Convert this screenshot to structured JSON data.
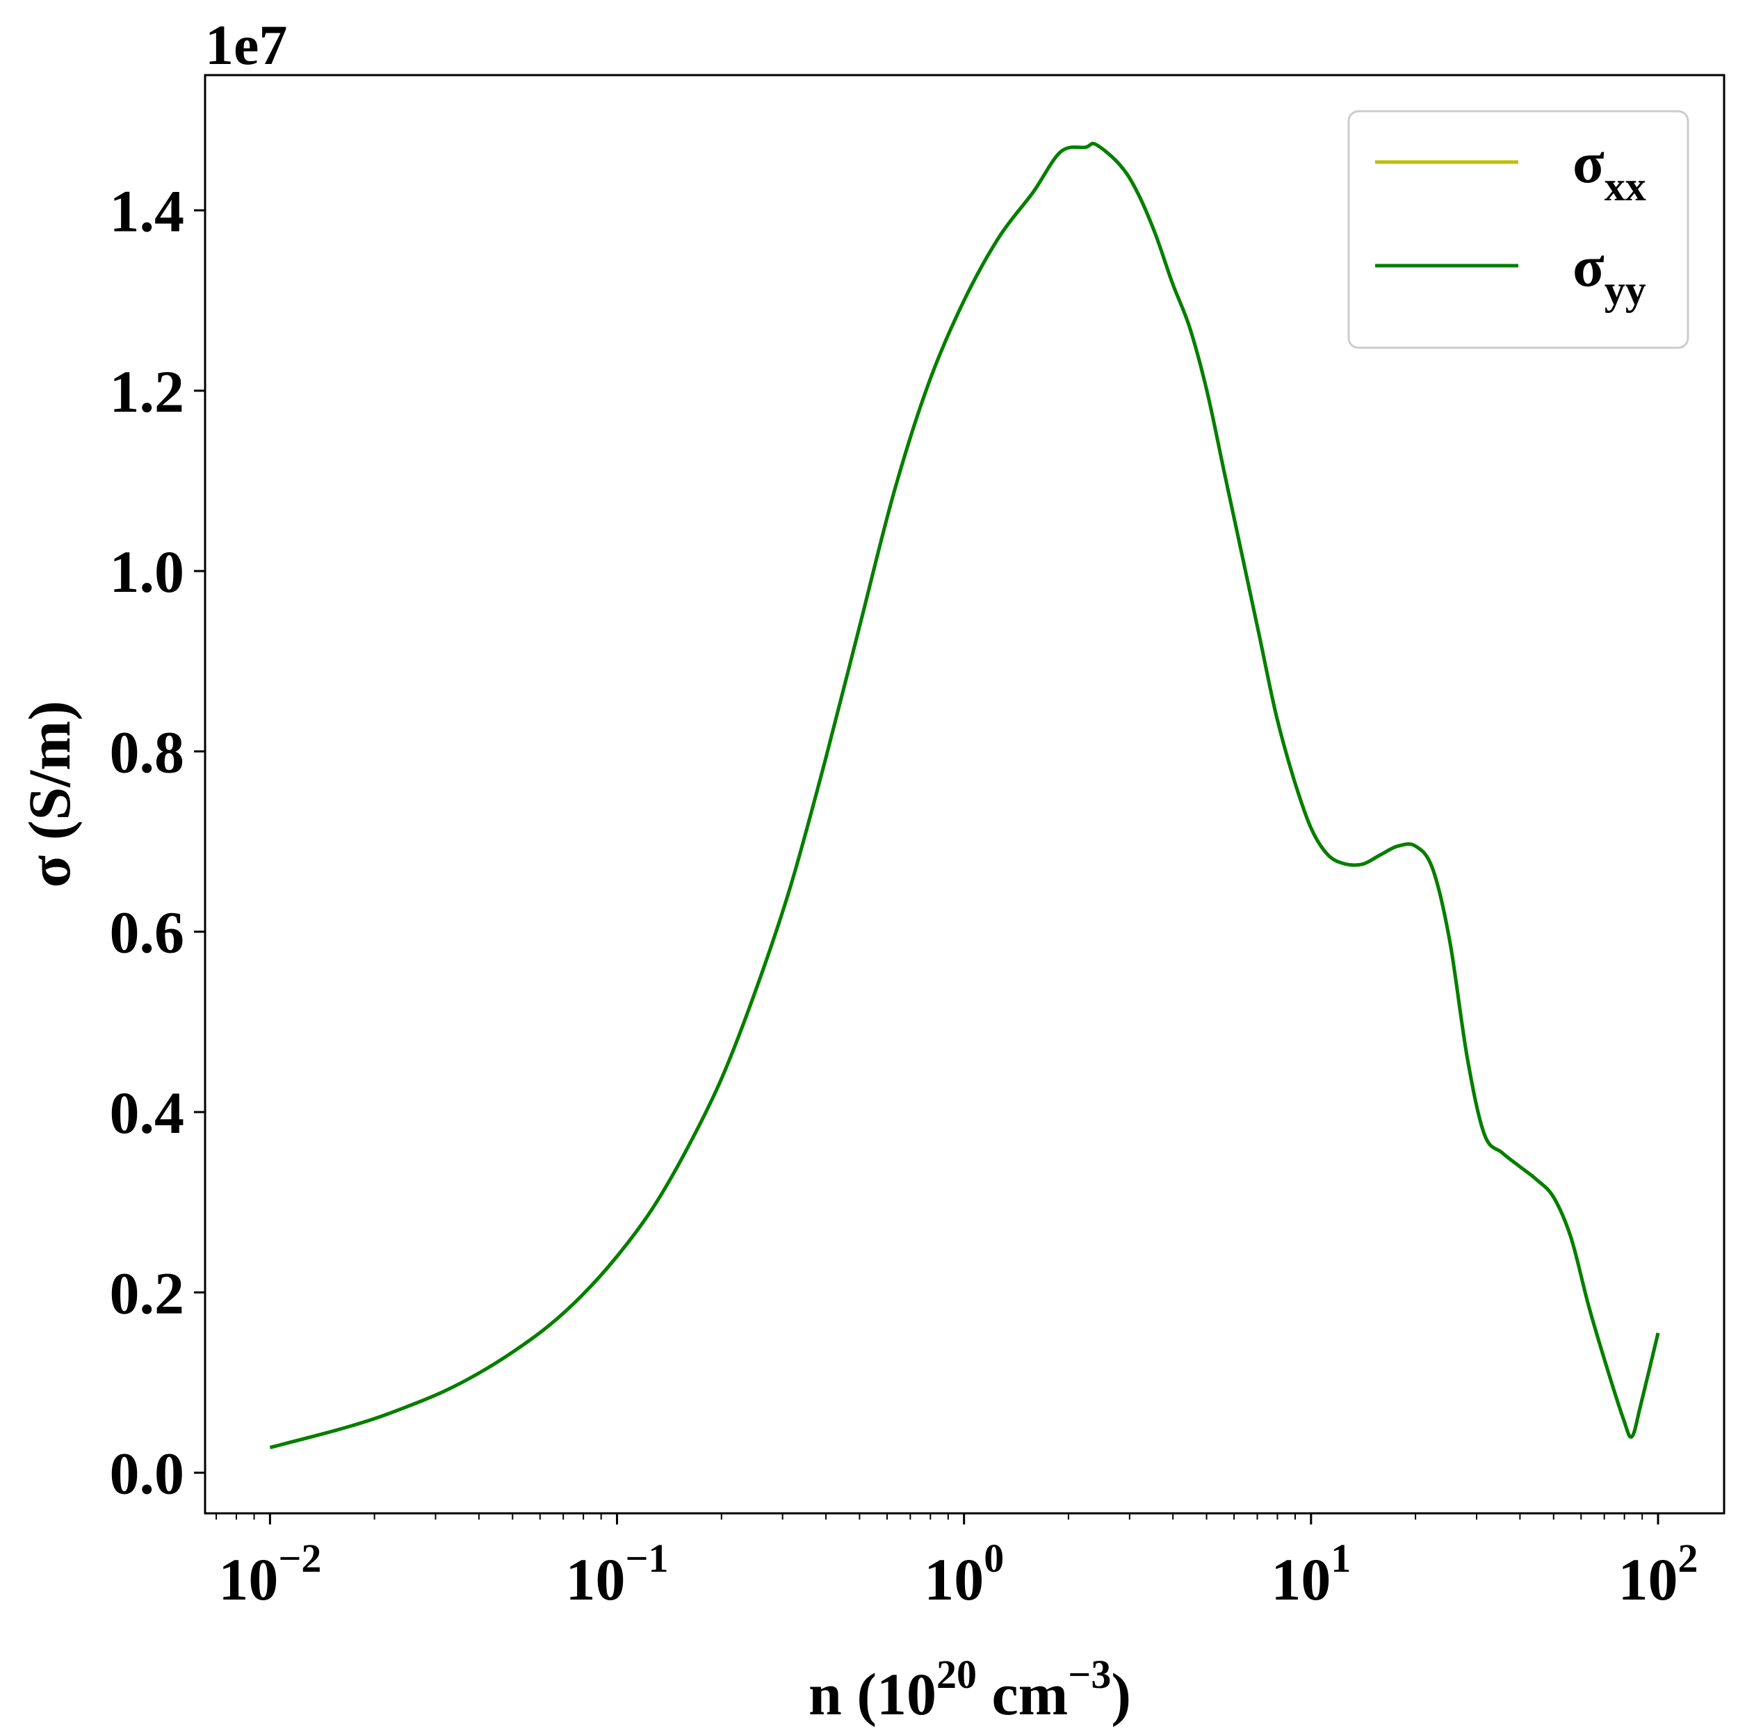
{
  "chart_data": {
    "type": "line",
    "xlabel": {
      "base": "n (10",
      "exp1": "20",
      "mid": " cm",
      "exp2": "−3",
      "end": ")"
    },
    "ylabel": "σ (S/m)",
    "y_offset_text": "1e7",
    "xscale": "log",
    "xlim": [
      0.0065,
      155
    ],
    "ylim": [
      -0.045,
      1.55
    ],
    "grid": false,
    "legend_position": "top-right",
    "x_ticks": [
      {
        "value": 0.01,
        "base": "10",
        "exp": "−2"
      },
      {
        "value": 0.1,
        "base": "10",
        "exp": "−1"
      },
      {
        "value": 1,
        "base": "10",
        "exp": "0"
      },
      {
        "value": 10,
        "base": "10",
        "exp": "1"
      },
      {
        "value": 100,
        "base": "10",
        "exp": "2"
      }
    ],
    "y_ticks": [
      {
        "value": 0.0,
        "label": "0.0"
      },
      {
        "value": 0.2,
        "label": "0.2"
      },
      {
        "value": 0.4,
        "label": "0.4"
      },
      {
        "value": 0.6,
        "label": "0.6"
      },
      {
        "value": 0.8,
        "label": "0.8"
      },
      {
        "value": 1.0,
        "label": "1.0"
      },
      {
        "value": 1.2,
        "label": "1.2"
      },
      {
        "value": 1.4,
        "label": "1.4"
      }
    ],
    "x": [
      0.01,
      0.0126,
      0.0158,
      0.02,
      0.0251,
      0.0316,
      0.0398,
      0.0501,
      0.0631,
      0.0794,
      0.1,
      0.126,
      0.158,
      0.2,
      0.251,
      0.316,
      0.398,
      0.501,
      0.631,
      0.794,
      1.0,
      1.26,
      1.58,
      1.9,
      2.24,
      2.4,
      2.82,
      3.16,
      3.55,
      3.98,
      4.47,
      5.01,
      5.62,
      6.31,
      7.08,
      7.94,
      8.91,
      10.0,
      11.2,
      12.6,
      14.1,
      15.8,
      17.8,
      20.0,
      22.4,
      25.1,
      28.2,
      31.6,
      35.5,
      39.8,
      44.7,
      50.1,
      56.2,
      63.1,
      70.8,
      79.4,
      84.0,
      89.1,
      100.0
    ],
    "series": [
      {
        "name": "σ_xx",
        "name_main": "σ",
        "name_sub": "xx",
        "color": "#bfbf00",
        "values": [
          0.028,
          0.038,
          0.048,
          0.06,
          0.074,
          0.09,
          0.11,
          0.134,
          0.162,
          0.197,
          0.24,
          0.292,
          0.357,
          0.437,
          0.535,
          0.65,
          0.79,
          0.94,
          1.09,
          1.21,
          1.3,
          1.37,
          1.42,
          1.465,
          1.47,
          1.473,
          1.45,
          1.42,
          1.375,
          1.32,
          1.27,
          1.2,
          1.11,
          1.02,
          0.93,
          0.84,
          0.77,
          0.715,
          0.685,
          0.675,
          0.675,
          0.685,
          0.695,
          0.695,
          0.67,
          0.59,
          0.46,
          0.375,
          0.355,
          0.34,
          0.325,
          0.305,
          0.26,
          0.185,
          0.12,
          0.06,
          0.04,
          0.075,
          0.155
        ]
      },
      {
        "name": "σ_yy",
        "name_main": "σ",
        "name_sub": "yy",
        "color": "#007f00",
        "values": [
          0.028,
          0.038,
          0.048,
          0.06,
          0.074,
          0.09,
          0.11,
          0.134,
          0.162,
          0.197,
          0.24,
          0.292,
          0.357,
          0.437,
          0.535,
          0.65,
          0.79,
          0.94,
          1.09,
          1.21,
          1.3,
          1.37,
          1.42,
          1.465,
          1.47,
          1.473,
          1.45,
          1.42,
          1.375,
          1.32,
          1.27,
          1.2,
          1.11,
          1.02,
          0.93,
          0.84,
          0.77,
          0.715,
          0.685,
          0.675,
          0.675,
          0.685,
          0.695,
          0.695,
          0.67,
          0.59,
          0.46,
          0.375,
          0.355,
          0.34,
          0.325,
          0.305,
          0.26,
          0.185,
          0.12,
          0.06,
          0.04,
          0.075,
          0.155
        ]
      }
    ]
  }
}
